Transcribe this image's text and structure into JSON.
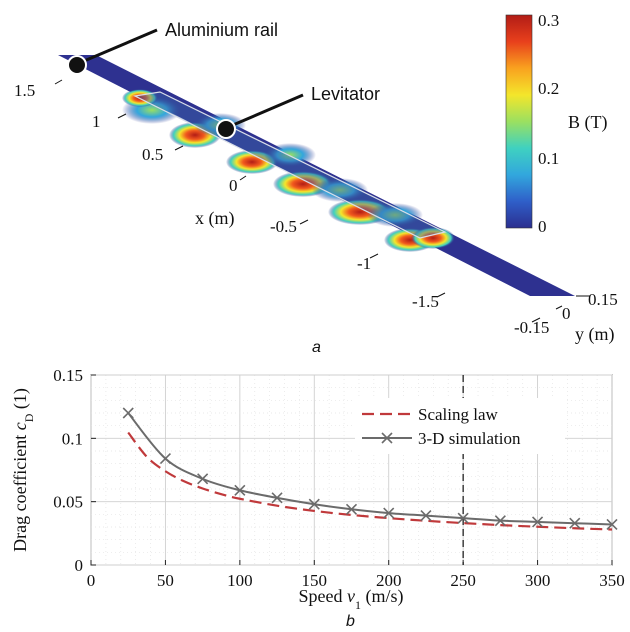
{
  "panel_a": {
    "label": "a",
    "callouts": {
      "rail": "Aluminium rail",
      "levitator": "Levitator"
    },
    "x_axis": {
      "label": "x (m)",
      "ticks": [
        "1.5",
        "1",
        "0.5",
        "0",
        "-0.5",
        "-1",
        "-1.5"
      ]
    },
    "y_axis": {
      "label": "y (m)",
      "ticks": [
        "0.15",
        "0",
        "-0.15"
      ]
    },
    "colorbar": {
      "label": "B (T)",
      "ticks": [
        "0",
        "0.1",
        "0.2",
        "0.3"
      ],
      "range": [
        0,
        0.3
      ],
      "colors": [
        "#2b2f8f",
        "#2f5fc9",
        "#32a7dd",
        "#3fd1c0",
        "#9be060",
        "#f4e62b",
        "#f9a21f",
        "#e8401c",
        "#b21c16"
      ]
    }
  },
  "chart_data": {
    "type": "line",
    "panel_label": "b",
    "xlabel": "Speed v1 (m/s)",
    "ylabel": "Drag coefficient cD (1)",
    "xlim": [
      0,
      350
    ],
    "ylim": [
      0,
      0.15
    ],
    "x_ticks": [
      "0",
      "50",
      "100",
      "150",
      "200",
      "250",
      "300",
      "350"
    ],
    "y_ticks": [
      "0",
      "0.05",
      "0.1",
      "0.15"
    ],
    "grid": true,
    "legend_position": "top-right",
    "vline_x": 250,
    "series": [
      {
        "name": "Scaling law",
        "style": "dashed",
        "color": "#c0393b",
        "x": [
          25,
          37.5,
          50,
          62.5,
          75,
          87.5,
          100,
          125,
          150,
          175,
          200,
          225,
          250,
          275,
          300,
          325,
          350
        ],
        "y": [
          0.1046,
          0.0854,
          0.074,
          0.0661,
          0.0604,
          0.0559,
          0.0523,
          0.0468,
          0.0427,
          0.0395,
          0.037,
          0.0349,
          0.0331,
          0.0315,
          0.0302,
          0.029,
          0.028
        ]
      },
      {
        "name": "3-D simulation",
        "style": "solid-x",
        "color": "#6b6b6b",
        "x": [
          25,
          50,
          75,
          100,
          125,
          150,
          175,
          200,
          225,
          250,
          275,
          300,
          325,
          350
        ],
        "y": [
          0.12,
          0.084,
          0.068,
          0.059,
          0.053,
          0.048,
          0.044,
          0.041,
          0.039,
          0.037,
          0.035,
          0.034,
          0.033,
          0.032
        ]
      }
    ]
  }
}
